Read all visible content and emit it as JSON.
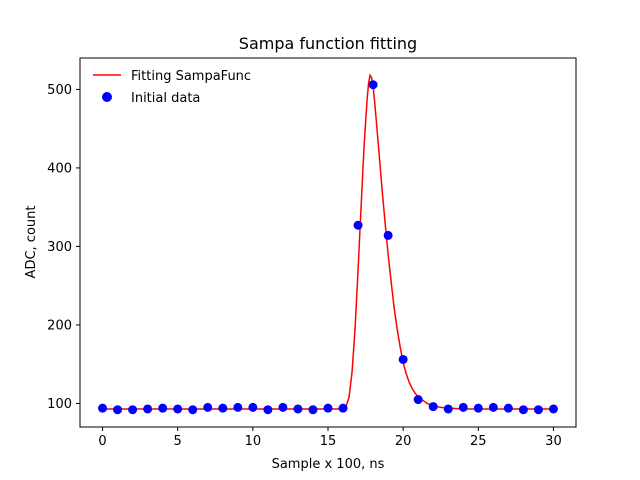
{
  "chart_data": {
    "type": "line",
    "title": "Sampa function fitting",
    "xlabel": "Sample x 100, ns",
    "ylabel": "ADC, count",
    "xlim": [
      -1.5,
      31.5
    ],
    "ylim": [
      70,
      540
    ],
    "xticks": [
      0,
      5,
      10,
      15,
      20,
      25,
      30
    ],
    "yticks": [
      100,
      200,
      300,
      400,
      500
    ],
    "grid": false,
    "legend_position": "top-left",
    "series": [
      {
        "name": "Fitting SampaFunc",
        "kind": "line",
        "color": "#ff0000",
        "x": [
          0,
          5,
          10,
          15,
          15.8,
          16.0,
          16.2,
          16.4,
          16.6,
          16.8,
          17.0,
          17.2,
          17.4,
          17.6,
          17.7,
          17.8,
          17.9,
          18.0,
          18.1,
          18.2,
          18.4,
          18.6,
          18.8,
          19.0,
          19.2,
          19.4,
          19.6,
          19.8,
          20.0,
          20.2,
          20.4,
          20.6,
          20.8,
          21.0,
          21.3,
          21.6,
          22.0,
          22.5,
          23.0,
          24.0,
          25.0,
          27.0,
          30.0
        ],
        "y": [
          93,
          93,
          93,
          93,
          93,
          93,
          96,
          108,
          140,
          195,
          270,
          350,
          428,
          487,
          508,
          518,
          515,
          503,
          485,
          463,
          418,
          372,
          330,
          290,
          255,
          222,
          195,
          172,
          152,
          138,
          127,
          119,
          113,
          108,
          104,
          100,
          97,
          95,
          94,
          93,
          93,
          93,
          93
        ]
      },
      {
        "name": "Initial data",
        "kind": "scatter",
        "color": "#0000ff",
        "x": [
          0,
          1,
          2,
          3,
          4,
          5,
          6,
          7,
          8,
          9,
          10,
          11,
          12,
          13,
          14,
          15,
          16,
          17,
          18,
          19,
          20,
          21,
          22,
          23,
          24,
          25,
          26,
          27,
          28,
          29,
          30
        ],
        "y": [
          94,
          92,
          92,
          93,
          94,
          93,
          92,
          95,
          94,
          95,
          95,
          92,
          95,
          93,
          92,
          94,
          94,
          327,
          506,
          314,
          156,
          105,
          96,
          93,
          95,
          94,
          95,
          94,
          92,
          92,
          93
        ]
      }
    ]
  }
}
